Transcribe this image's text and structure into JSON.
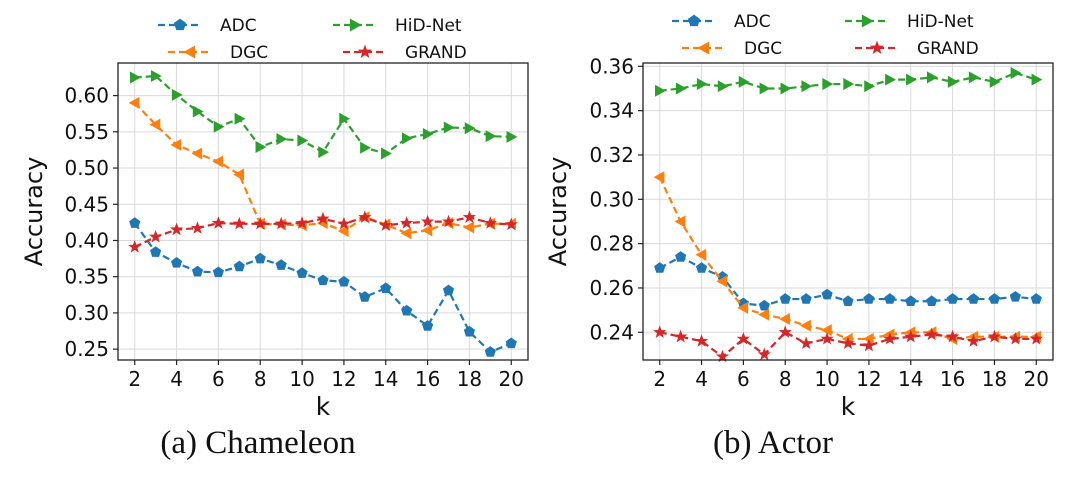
{
  "colors": {
    "ADC": "#1f77b4",
    "DGC": "#ff7f0e",
    "HiD-Net": "#2ca02c",
    "GRAND": "#d62728"
  },
  "chart_data": [
    {
      "type": "line",
      "caption": "(a)  Chameleon",
      "xlabel": "k",
      "ylabel": "Accuracy",
      "xlim": [
        1.2,
        20.8
      ],
      "ylim": [
        0.235,
        0.645
      ],
      "xticks": [
        2,
        4,
        6,
        8,
        10,
        12,
        14,
        16,
        18,
        20
      ],
      "yticks": [
        0.25,
        0.3,
        0.35,
        0.4,
        0.45,
        0.5,
        0.55,
        0.6
      ],
      "ytick_labels": [
        "0.25",
        "0.30",
        "0.35",
        "0.40",
        "0.45",
        "0.50",
        "0.55",
        "0.60"
      ],
      "grid": true,
      "legend": "top, outside, 2 columns",
      "x": [
        2,
        3,
        4,
        5,
        6,
        7,
        8,
        9,
        10,
        11,
        12,
        13,
        14,
        15,
        16,
        17,
        18,
        19,
        20
      ],
      "series": [
        {
          "name": "ADC",
          "marker": "pentagon",
          "values": [
            0.424,
            0.384,
            0.369,
            0.357,
            0.356,
            0.364,
            0.375,
            0.366,
            0.355,
            0.345,
            0.343,
            0.322,
            0.334,
            0.303,
            0.282,
            0.331,
            0.274,
            0.246,
            0.258
          ]
        },
        {
          "name": "DGC",
          "marker": "triangle-left",
          "values": [
            0.59,
            0.56,
            0.532,
            0.52,
            0.509,
            0.491,
            0.423,
            0.422,
            0.421,
            0.424,
            0.413,
            0.432,
            0.422,
            0.41,
            0.414,
            0.424,
            0.418,
            0.423,
            0.423
          ]
        },
        {
          "name": "HiD-Net",
          "marker": "triangle-right",
          "values": [
            0.625,
            0.627,
            0.601,
            0.578,
            0.557,
            0.568,
            0.529,
            0.54,
            0.538,
            0.522,
            0.568,
            0.528,
            0.52,
            0.541,
            0.547,
            0.556,
            0.555,
            0.544,
            0.543
          ]
        },
        {
          "name": "GRAND",
          "marker": "star",
          "values": [
            0.391,
            0.405,
            0.415,
            0.417,
            0.424,
            0.423,
            0.423,
            0.423,
            0.424,
            0.43,
            0.423,
            0.432,
            0.421,
            0.424,
            0.426,
            0.426,
            0.432,
            0.424,
            0.422
          ]
        }
      ]
    },
    {
      "type": "line",
      "caption": "(b)  Actor",
      "xlabel": "k",
      "ylabel": "Accuracy",
      "xlim": [
        1.2,
        20.8
      ],
      "ylim": [
        0.2275,
        0.3615
      ],
      "xticks": [
        2,
        4,
        6,
        8,
        10,
        12,
        14,
        16,
        18,
        20
      ],
      "yticks": [
        0.24,
        0.26,
        0.28,
        0.3,
        0.32,
        0.34,
        0.36
      ],
      "ytick_labels": [
        "0.24",
        "0.26",
        "0.28",
        "0.30",
        "0.32",
        "0.34",
        "0.36"
      ],
      "grid": true,
      "legend": "top, outside, 2 columns",
      "x": [
        2,
        3,
        4,
        5,
        6,
        7,
        8,
        9,
        10,
        11,
        12,
        13,
        14,
        15,
        16,
        17,
        18,
        19,
        20
      ],
      "series": [
        {
          "name": "ADC",
          "marker": "pentagon",
          "values": [
            0.269,
            0.274,
            0.269,
            0.265,
            0.253,
            0.252,
            0.255,
            0.255,
            0.257,
            0.254,
            0.255,
            0.255,
            0.254,
            0.254,
            0.255,
            0.255,
            0.255,
            0.256,
            0.255
          ]
        },
        {
          "name": "DGC",
          "marker": "triangle-left",
          "values": [
            0.31,
            0.29,
            0.275,
            0.263,
            0.251,
            0.248,
            0.246,
            0.243,
            0.241,
            0.237,
            0.237,
            0.239,
            0.24,
            0.24,
            0.237,
            0.238,
            0.238,
            0.238,
            0.238
          ]
        },
        {
          "name": "HiD-Net",
          "marker": "triangle-right",
          "values": [
            0.349,
            0.35,
            0.352,
            0.351,
            0.353,
            0.35,
            0.35,
            0.351,
            0.352,
            0.352,
            0.351,
            0.354,
            0.354,
            0.355,
            0.353,
            0.355,
            0.353,
            0.357,
            0.354
          ]
        },
        {
          "name": "GRAND",
          "marker": "star",
          "values": [
            0.24,
            0.238,
            0.236,
            0.229,
            0.237,
            0.23,
            0.24,
            0.235,
            0.237,
            0.235,
            0.234,
            0.237,
            0.238,
            0.239,
            0.238,
            0.236,
            0.238,
            0.237,
            0.237
          ]
        }
      ]
    }
  ]
}
